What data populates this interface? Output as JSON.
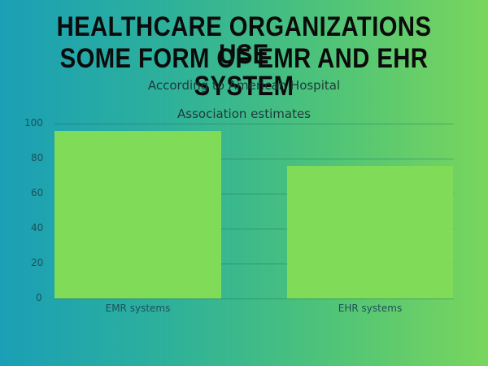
{
  "header": {
    "title_line1": "HEALTHCARE ORGANIZATIONS USE",
    "title_line2": "SOME FORM OF EMR AND EHR SYSTEM",
    "subtitle_line1": "According to American Hospital",
    "subtitle_line2": "Association estimates"
  },
  "axis": {
    "ticks": [
      "100",
      "80",
      "60",
      "40",
      "20",
      "0"
    ]
  },
  "bars": [
    {
      "label": "EMR systems",
      "value": 96
    },
    {
      "label": "EHR systems",
      "value": 76
    }
  ],
  "colors": {
    "bar": "#80db58",
    "bg_start": "#1a9fb6",
    "bg_end": "#79d65d"
  },
  "chart_data": {
    "type": "bar",
    "title": "HEALTHCARE ORGANIZATIONS USE SOME FORM OF EMR AND EHR SYSTEM",
    "subtitle": "According to American Hospital Association estimates",
    "categories": [
      "EMR systems",
      "EHR systems"
    ],
    "values": [
      96,
      76
    ],
    "xlabel": "",
    "ylabel": "",
    "ylim": [
      0,
      100
    ],
    "yticks": [
      0,
      20,
      40,
      60,
      80,
      100
    ],
    "grid": true,
    "legend": "none"
  }
}
